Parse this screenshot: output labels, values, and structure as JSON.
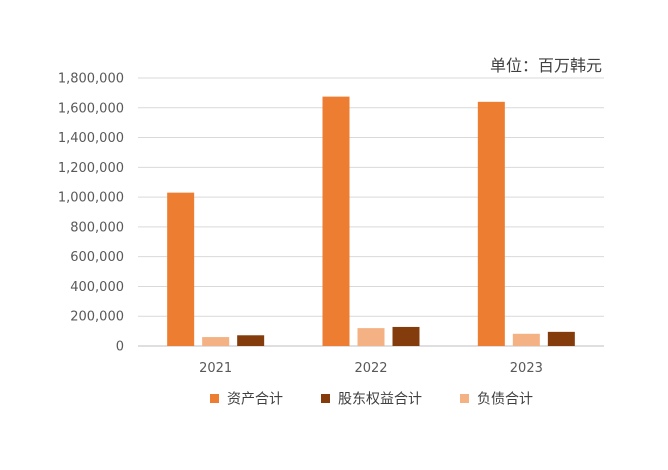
{
  "chart_data": {
    "type": "bar",
    "unit_label": "单位：百万韩元",
    "categories": [
      "2021",
      "2022",
      "2023"
    ],
    "series": [
      {
        "name": "资产合计",
        "color": "#ED7D31",
        "values": [
          1030000,
          1675000,
          1640000
        ]
      },
      {
        "name": "负债合计",
        "color": "#F4B183",
        "values": [
          60000,
          120000,
          82000
        ]
      },
      {
        "name": "股东权益合计",
        "color": "#843C0C",
        "values": [
          72000,
          128000,
          95000
        ]
      }
    ],
    "legend_order": [
      "资产合计",
      "股东权益合计",
      "负债合计"
    ],
    "legend_position": "bottom",
    "ylim": [
      0,
      1800000
    ],
    "yticks": [
      "0",
      "200,000",
      "400,000",
      "600,000",
      "800,000",
      "1,000,000",
      "1,200,000",
      "1,400,000",
      "1,600,000",
      "1,800,000"
    ],
    "grid": true
  }
}
